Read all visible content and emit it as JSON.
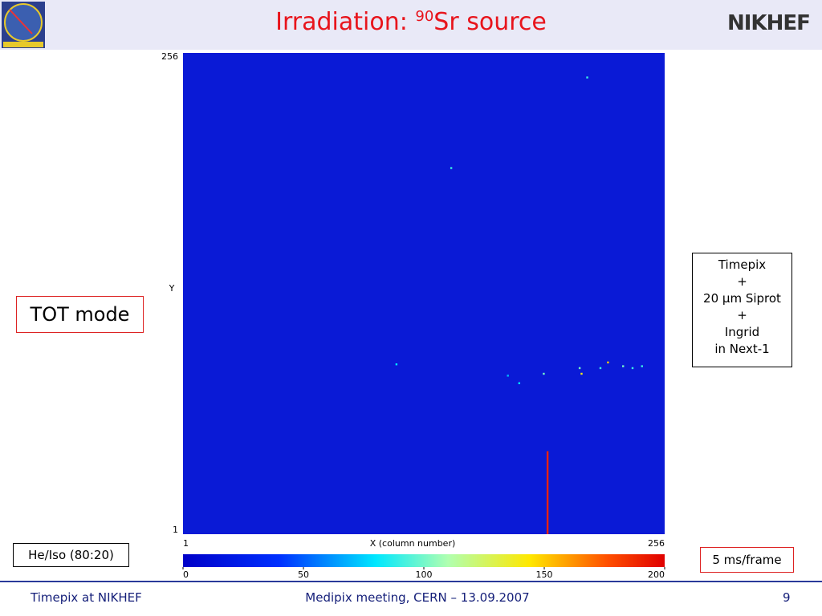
{
  "header": {
    "title": "Irradiation: ",
    "title_sup": "90",
    "title_rest": "Sr source",
    "logo": "NIKHEF"
  },
  "left_box": "TOT mode",
  "gas_box": "He/Iso (80:20)",
  "info_box": [
    "Timepix",
    "+",
    "20 µm Siprot",
    "+",
    "Ingrid",
    "in Next-1"
  ],
  "rate_box": "5 ms/frame",
  "footer": {
    "left": "Timepix at NIKHEF",
    "center": "Medipix meeting, CERN – 13.09.2007",
    "right": "9"
  },
  "chart_data": {
    "type": "scatter",
    "xlabel": "X (column number)",
    "ylabel": "Y",
    "xlim": [
      1,
      256
    ],
    "ylim": [
      1,
      256
    ],
    "xticks": [
      1,
      256
    ],
    "yticks": [
      1,
      256
    ],
    "x": [
      215,
      143,
      114,
      173,
      179,
      192,
      211,
      212,
      222,
      226,
      234,
      239,
      244
    ],
    "y": [
      243,
      195,
      91,
      85,
      81,
      86,
      89,
      86,
      89,
      92,
      90,
      89,
      90
    ],
    "values": [
      90,
      90,
      80,
      70,
      80,
      100,
      100,
      140,
      90,
      150,
      100,
      90,
      90
    ],
    "track": {
      "x": 194,
      "y": [
        1,
        45
      ],
      "value": 190
    },
    "clim": [
      0,
      200
    ],
    "cticks": [
      0,
      50,
      100,
      150,
      200
    ]
  }
}
